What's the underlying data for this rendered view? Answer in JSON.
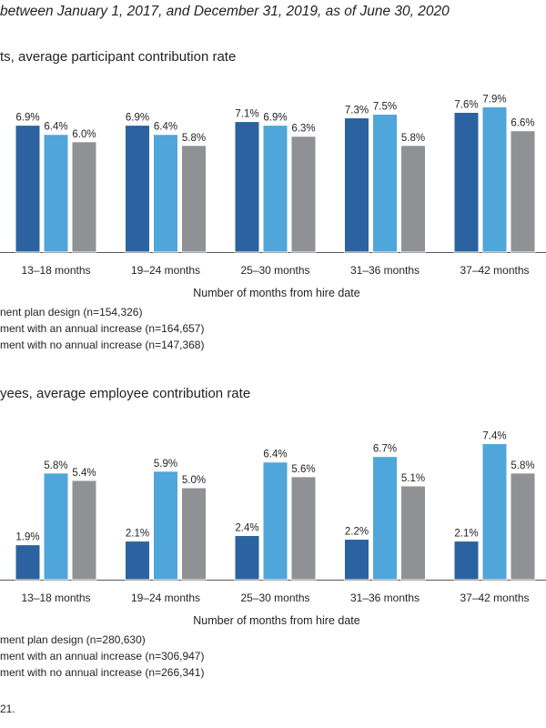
{
  "subtitle": "between January 1, 2017, and December 31, 2019, as of June 30, 2020",
  "footnote": "21.",
  "colors": {
    "series_1": "#2a639f",
    "series_2": "#4fa6da",
    "series_3": "#8f9194",
    "axis": "#555555"
  },
  "chart_data": [
    {
      "type": "bar",
      "title": "ts, average participant contribution rate",
      "xlabel": "Number of months from hire date",
      "ylabel": "",
      "ylim": [
        0,
        8.5
      ],
      "grid": false,
      "legend_placement": "bottom-left",
      "categories": [
        "13–18 months",
        "19–24 months",
        "25–30 months",
        "31–36 months",
        "37–42 months"
      ],
      "series": [
        {
          "name": "nent plan design (n=154,326)",
          "values": [
            6.9,
            6.9,
            7.1,
            7.3,
            7.6
          ],
          "labels": [
            "6.9%",
            "6.9%",
            "7.1%",
            "7.3%",
            "7.6%"
          ]
        },
        {
          "name": "ment with an annual increase (n=164,657)",
          "values": [
            6.4,
            6.4,
            6.9,
            7.5,
            7.9
          ],
          "labels": [
            "6.4%",
            "6.4%",
            "6.9%",
            "7.5%",
            "7.9%"
          ]
        },
        {
          "name": "ment with no annual increase  (n=147,368)",
          "values": [
            6.0,
            5.8,
            6.3,
            5.8,
            6.6
          ],
          "labels": [
            "6.0%",
            "5.8%",
            "6.3%",
            "5.8%",
            "6.6%"
          ]
        }
      ]
    },
    {
      "type": "bar",
      "title": "yees, average employee contribution rate",
      "xlabel": "Number of months from hire date",
      "ylabel": "",
      "ylim": [
        0,
        8.5
      ],
      "grid": false,
      "legend_placement": "bottom-left",
      "categories": [
        "13–18 months",
        "19–24 months",
        "25–30 months",
        "31–36 months",
        "37–42 months"
      ],
      "series": [
        {
          "name": "ment plan design (n=280,630)",
          "values": [
            1.9,
            2.1,
            2.4,
            2.2,
            2.1
          ],
          "labels": [
            "1.9%",
            "2.1%",
            "2.4%",
            "2.2%",
            "2.1%"
          ]
        },
        {
          "name": "ment with an annual increase (n=306,947)",
          "values": [
            5.8,
            5.9,
            6.4,
            6.7,
            7.4
          ],
          "labels": [
            "5.8%",
            "5.9%",
            "6.4%",
            "6.7%",
            "7.4%"
          ]
        },
        {
          "name": "ment with no annual increase (n=266,341)",
          "values": [
            5.4,
            5.0,
            5.6,
            5.1,
            5.8
          ],
          "labels": [
            "5.4%",
            "5.0%",
            "5.6%",
            "5.1%",
            "5.8%"
          ]
        }
      ]
    }
  ]
}
